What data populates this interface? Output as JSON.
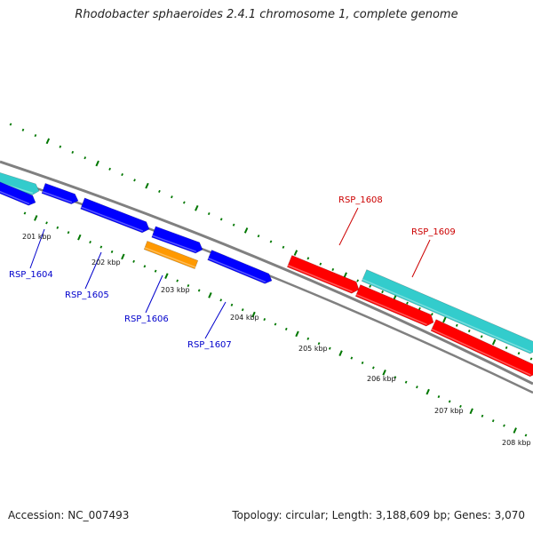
{
  "header": {
    "title": "Rhodobacter sphaeroides 2.4.1 chromosome 1, complete genome"
  },
  "footer": {
    "accession": "Accession: NC_007493",
    "topology": "Topology: circular; Length: 3,188,609 bp; Genes: 3,070"
  },
  "colors": {
    "forward_strand": "#33cccc",
    "reverse_strand": "#0000ff",
    "highlight_gene": "#ff9900",
    "red_genes": "#ff0000",
    "backbone": "#888888",
    "ticks": "#007700",
    "blue_labels": "#0000cc",
    "red_labels": "#cc0000"
  },
  "scale_labels": [
    "201 kbp",
    "202 kbp",
    "203 kbp",
    "204 kbp",
    "205 kbp",
    "206 kbp",
    "207 kbp",
    "208 kbp"
  ],
  "gene_labels": [
    {
      "text": "RSP_1604",
      "color": "blue"
    },
    {
      "text": "RSP_1605",
      "color": "blue"
    },
    {
      "text": "RSP_1606",
      "color": "blue"
    },
    {
      "text": "RSP_1607",
      "color": "blue"
    },
    {
      "text": "RSP_1608",
      "color": "red"
    },
    {
      "text": "RSP_1609",
      "color": "red"
    }
  ],
  "features": [
    {
      "icon": "gene-arrow-icon",
      "color": "cyan"
    },
    {
      "icon": "gene-arrow-icon",
      "color": "blue"
    },
    {
      "icon": "gene-arrow-icon",
      "color": "blue"
    },
    {
      "icon": "gene-arrow-icon",
      "color": "blue"
    },
    {
      "icon": "gene-arrow-icon",
      "color": "blue"
    },
    {
      "icon": "gene-block-icon",
      "color": "orange"
    },
    {
      "icon": "gene-arrow-icon",
      "color": "blue"
    },
    {
      "icon": "gene-arrow-icon",
      "color": "red"
    },
    {
      "icon": "gene-arrow-icon",
      "color": "red"
    },
    {
      "icon": "gene-arrow-icon",
      "color": "red"
    },
    {
      "icon": "gene-arrow-icon",
      "color": "cyan"
    }
  ]
}
